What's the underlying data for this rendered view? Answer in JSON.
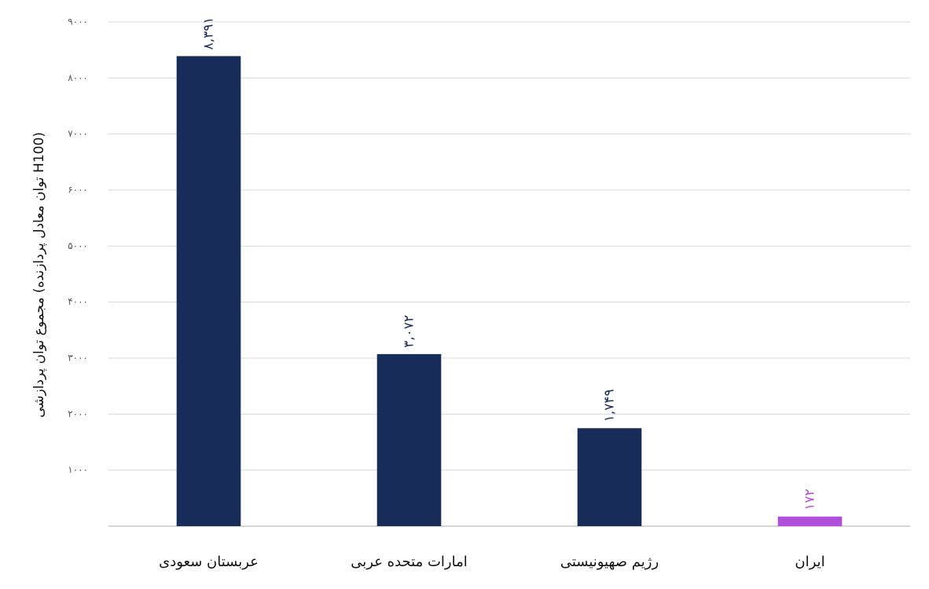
{
  "chart_data": {
    "type": "bar",
    "y_label": "مجموع توان پردازشی (توان معادل پردازنده H100)",
    "categories": [
      "عربستان سعودی",
      "امارات متحده عربی",
      "رژیم صهیونیستی",
      "ایران"
    ],
    "values": [
      8391,
      3072,
      1749,
      172
    ],
    "value_labels": [
      "۸,۳۹۱",
      "۳,۰۷۲",
      "۱,۷۴۹",
      "۱۷۲"
    ],
    "colors": [
      "#182c5a",
      "#182c5a",
      "#182c5a",
      "#b14fdb"
    ],
    "ylim": [
      0,
      9000
    ],
    "yticks": [
      {
        "value": 1000,
        "label": "۱۰۰۰"
      },
      {
        "value": 2000,
        "label": "۲۰۰۰"
      },
      {
        "value": 3000,
        "label": "۳۰۰۰"
      },
      {
        "value": 4000,
        "label": "۴۰۰۰"
      },
      {
        "value": 5000,
        "label": "۵۰۰۰"
      },
      {
        "value": 6000,
        "label": "۶۰۰۰"
      },
      {
        "value": 7000,
        "label": "۷۰۰۰"
      },
      {
        "value": 8000,
        "label": "۸۰۰۰"
      },
      {
        "value": 9000,
        "label": "۹۰۰۰"
      }
    ],
    "grid": true
  }
}
